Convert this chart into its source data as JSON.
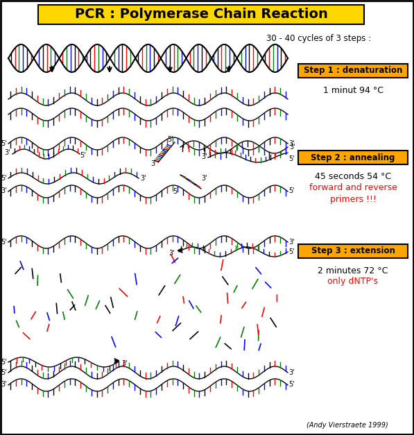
{
  "title": "PCR : Polymerase Chain Reaction",
  "title_bg": "#FFD700",
  "subtitle": "30 - 40 cycles of 3 steps :",
  "step1_label": "Step 1 : denaturation",
  "step1_detail": "1 minut 94 °C",
  "step2_label": "Step 2 : annealing",
  "step2_detail": "45 seconds 54 °C",
  "step2_red": "forward and reverse\nprimers !!!",
  "step3_label": "Step 3 : extension",
  "step3_detail": "2 minutes 72 °C",
  "step3_red": "only dNTP's",
  "step_bg": "#FFA500",
  "credit": "(Andy Vierstraete 1999)",
  "bg_color": "#FFFFFF",
  "dna_colors": [
    "#000000",
    "#FF0000",
    "#008000",
    "#0000FF"
  ]
}
